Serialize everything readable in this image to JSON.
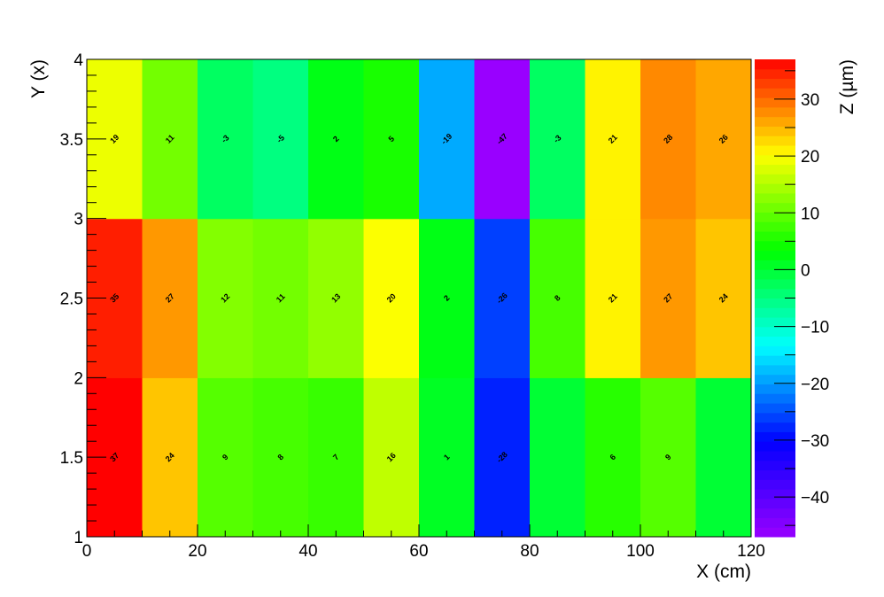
{
  "chart_data": {
    "type": "heatmap",
    "title": "",
    "xlabel": "X (cm)",
    "ylabel": "Y (x)",
    "zlabel": "Z (µm)",
    "xlim": [
      0,
      120
    ],
    "ylim": [
      1,
      4
    ],
    "zlim": [
      -47,
      37
    ],
    "x_edges": [
      0,
      10,
      20,
      30,
      40,
      50,
      60,
      70,
      80,
      90,
      100,
      110,
      120
    ],
    "y_edges": [
      1,
      2,
      3,
      4
    ],
    "x_ticks": [
      0,
      20,
      40,
      60,
      80,
      100,
      120
    ],
    "x_tick_labels": [
      "0",
      "20",
      "40",
      "60",
      "80",
      "100",
      "120"
    ],
    "y_ticks": [
      1,
      1.5,
      2,
      2.5,
      3,
      3.5,
      4
    ],
    "y_tick_labels": [
      "1",
      "1.5",
      "2",
      "2.5",
      "3",
      "3.5",
      "4"
    ],
    "z_ticks": [
      -40,
      -30,
      -20,
      -10,
      0,
      10,
      20,
      30
    ],
    "z_tick_labels": [
      "−40",
      "−30",
      "−20",
      "−10",
      "0",
      "10",
      "20",
      "30"
    ],
    "rows": [
      {
        "y_range": [
          1,
          2
        ],
        "values": [
          37,
          24,
          9,
          8,
          7,
          16,
          1,
          -28,
          0,
          6,
          9,
          0
        ],
        "labels": [
          "37",
          "24",
          "9",
          "8",
          "7",
          "16",
          "1",
          "-28",
          "",
          "6",
          "9",
          ""
        ]
      },
      {
        "y_range": [
          2,
          3
        ],
        "values": [
          35,
          27,
          12,
          11,
          13,
          20,
          2,
          -26,
          8,
          21,
          27,
          24
        ],
        "labels": [
          "35",
          "27",
          "12",
          "11",
          "13",
          "20",
          "2",
          "-26",
          "8",
          "21",
          "27",
          "24"
        ]
      },
      {
        "y_range": [
          3,
          4
        ],
        "values": [
          19,
          11,
          -3,
          -5,
          2,
          5,
          -19,
          -47,
          -3,
          21,
          28,
          26
        ],
        "labels": [
          "19",
          "11",
          "-3",
          "-5",
          "2",
          "5",
          "-19",
          "-47",
          "-3",
          "21",
          "28",
          "26"
        ]
      }
    ],
    "colors": {
      "palette": [
        "#9900ff",
        "#0000ff",
        "#00ffff",
        "#00ff00",
        "#ffff00",
        "#ff0000"
      ],
      "frame": "#000000",
      "label": "#000000"
    }
  }
}
